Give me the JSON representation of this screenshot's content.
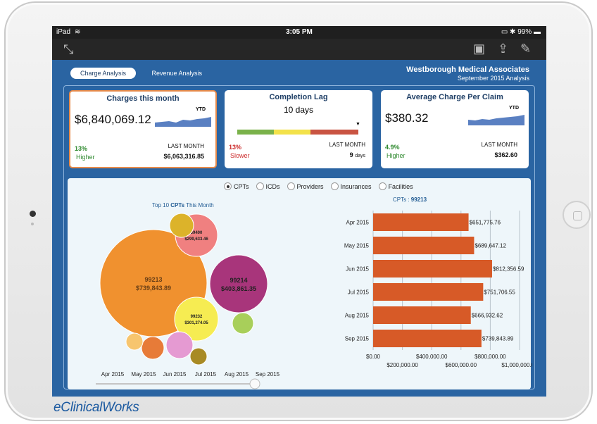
{
  "statusbar": {
    "device": "iPad",
    "time": "3:05 PM",
    "battery": "99%"
  },
  "toolbar": {
    "icons": [
      "resize-icon",
      "windows-icon",
      "share-icon",
      "edit-icon"
    ]
  },
  "tabs": [
    {
      "label": "Charge Analysis",
      "active": true
    },
    {
      "label": "Revenue Analysis",
      "active": false
    }
  ],
  "org": {
    "name": "Westborough Medical Associates",
    "subtitle": "September 2015 Analysis"
  },
  "cards": {
    "charges": {
      "title": "Charges this month",
      "value": "$6,840,069.12",
      "ytd": "YTD",
      "pct": "13%",
      "trend": "Higher",
      "last_label": "LAST MONTH",
      "last_value": "$6,063,316.85"
    },
    "lag": {
      "title": "Completion Lag",
      "value": "10 days",
      "pct": "13%",
      "trend": "Slower",
      "last_label": "LAST MONTH",
      "last_num": "9",
      "last_unit": "days"
    },
    "avg": {
      "title": "Average Charge Per Claim",
      "value": "$380.32",
      "ytd": "YTD",
      "pct": "4.9%",
      "trend": "Higher",
      "last_label": "LAST MONTH",
      "last_value": "$362.60"
    }
  },
  "filters": [
    {
      "label": "CPTs",
      "selected": true
    },
    {
      "label": "ICDs",
      "selected": false
    },
    {
      "label": "Providers",
      "selected": false
    },
    {
      "label": "Insurances",
      "selected": false
    },
    {
      "label": "Facilities",
      "selected": false
    }
  ],
  "bubble_chart": {
    "title_prefix": "Top 10 ",
    "title_bold": "CPTs",
    "title_suffix": " This Month"
  },
  "timeline": {
    "labels": [
      "Apr 2015",
      "May 2015",
      "Jun 2015",
      "Jul 2015",
      "Aug 2015",
      "Sep 2015"
    ]
  },
  "bar_chart_title": {
    "prefix": "CPTs : ",
    "code": "99213"
  },
  "colors": {
    "accent": "#e0602a",
    "good": "#2f8a2f",
    "bad": "#cc2b2b",
    "header": "#2a64a2"
  },
  "chart_data": [
    {
      "type": "bubble",
      "title": "Top 10 CPTs This Month",
      "points": [
        {
          "code": "99213",
          "value": 739843.89,
          "label": "$739,843.89",
          "color": "#f0912f"
        },
        {
          "code": "99214",
          "value": 403861.35,
          "label": "$403,861.35",
          "color": "#a8357b"
        },
        {
          "code": "59400",
          "value": 299633.46,
          "label": "$299,633.46",
          "color": "#f08080"
        },
        {
          "code": "99232",
          "value": 301274.05,
          "label": "$301,274.05",
          "color": "#f6ec52"
        },
        {
          "code": "",
          "value": null,
          "label": "",
          "color": "#dcb32a"
        },
        {
          "code": "",
          "value": null,
          "label": "",
          "color": "#e77b38"
        },
        {
          "code": "",
          "value": null,
          "label": "",
          "color": "#e59ad2"
        },
        {
          "code": "",
          "value": null,
          "label": "",
          "color": "#a8cf5a"
        },
        {
          "code": "",
          "value": null,
          "label": "",
          "color": "#f7c56e"
        },
        {
          "code": "",
          "value": null,
          "label": "",
          "color": "#a88a24"
        }
      ]
    },
    {
      "type": "bar",
      "orientation": "horizontal",
      "title": "CPTs : 99213",
      "categories": [
        "Apr 2015",
        "May 2015",
        "Jun 2015",
        "Jul 2015",
        "Aug 2015",
        "Sep 2015"
      ],
      "values": [
        651775.76,
        689647.12,
        812356.59,
        751706.55,
        666932.62,
        739843.89
      ],
      "labels": [
        "$651,775.76",
        "$689,647.12",
        "$812,356.59",
        "$751,706.55",
        "$666,932.62",
        "$739,843.89"
      ],
      "xlim": [
        0,
        1000000
      ],
      "x_ticks_top": [
        "$0.00",
        "$400,000.00",
        "$800,000.00"
      ],
      "x_ticks_bottom": [
        "$200,000.00",
        "$600,000.00",
        "$1,000,000.00"
      ]
    }
  ]
}
